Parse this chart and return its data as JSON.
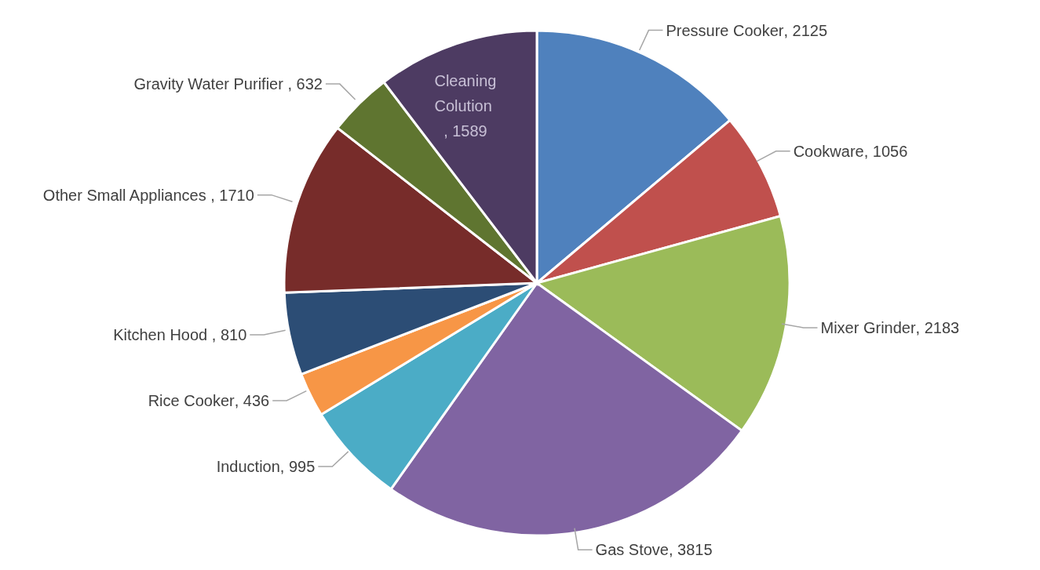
{
  "chart_data": {
    "type": "pie",
    "categories": [
      "Pressure Cooker",
      "Cookware",
      "Mixer Grinder",
      "Gas Stove",
      "Induction",
      "Rice Cooker",
      "Kitchen Hood ",
      "Other Small Appliances ",
      "Gravity Water Purifier ",
      "Cleaning Colution "
    ],
    "values": [
      2125,
      1056,
      2183,
      3815,
      995,
      436,
      810,
      1710,
      632,
      1589
    ],
    "value_labels": [
      ", 2125",
      ", 1056",
      ", 2183",
      ", 3815",
      ", 995",
      ", 436",
      ", 810",
      ", 1710",
      ", 632",
      ", 1589"
    ],
    "colors": [
      "#4f81bd",
      "#c0504d",
      "#9bbb59",
      "#8064a2",
      "#4bacc6",
      "#f79646",
      "#2c4d75",
      "#772c2a",
      "#5f7530",
      "#4d3b62"
    ],
    "legend": false
  }
}
